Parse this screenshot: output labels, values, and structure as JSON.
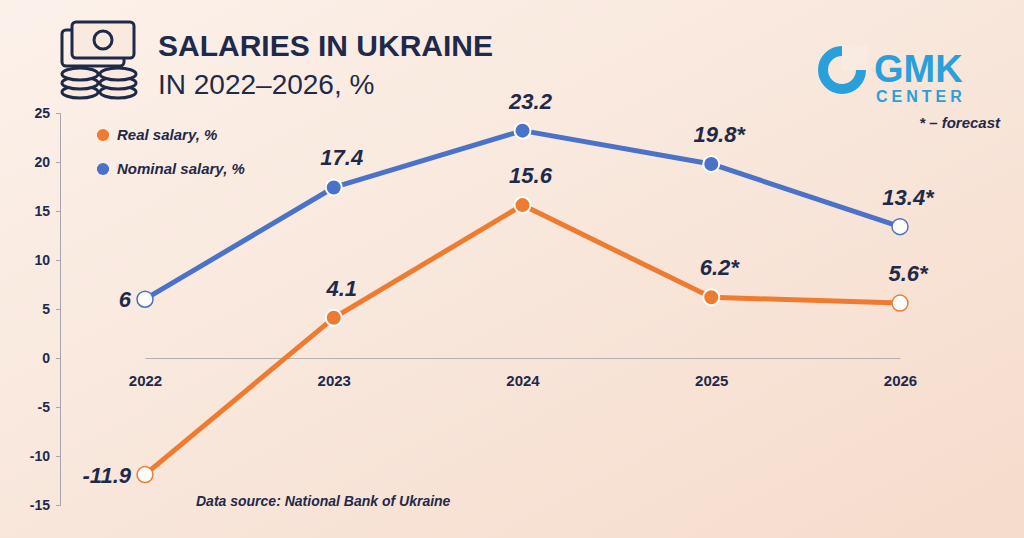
{
  "chart_data": {
    "type": "line",
    "title": "SALARIES IN UKRAINE",
    "subtitle": "IN 2022–2026, %",
    "categories": [
      "2022",
      "2023",
      "2024",
      "2025",
      "2026"
    ],
    "series": [
      {
        "name": "Real salary, %",
        "color": "#ee7b30",
        "marker": "circle",
        "values": [
          -11.9,
          4.1,
          15.6,
          6.2,
          5.6
        ],
        "value_labels": [
          "-11.9",
          "4.1",
          "15.6",
          "6.2*",
          "5.6*"
        ]
      },
      {
        "name": "Nominal salary, %",
        "color": "#4a72c8",
        "marker": "circle",
        "values": [
          6,
          17.4,
          23.2,
          19.8,
          13.4
        ],
        "value_labels": [
          "6",
          "17.4",
          "23.2",
          "19.8*",
          "13.4*"
        ]
      }
    ],
    "ylim": [
      -15,
      25
    ],
    "yticks": [
      -15,
      -10,
      -5,
      0,
      5,
      10,
      15,
      20,
      25
    ],
    "grid": false,
    "legend": "upper left",
    "data_labels": true,
    "annotations": [
      "* – forecast",
      "Data source: National Bank of Ukraine",
      "GMK",
      "CENTER"
    ]
  }
}
